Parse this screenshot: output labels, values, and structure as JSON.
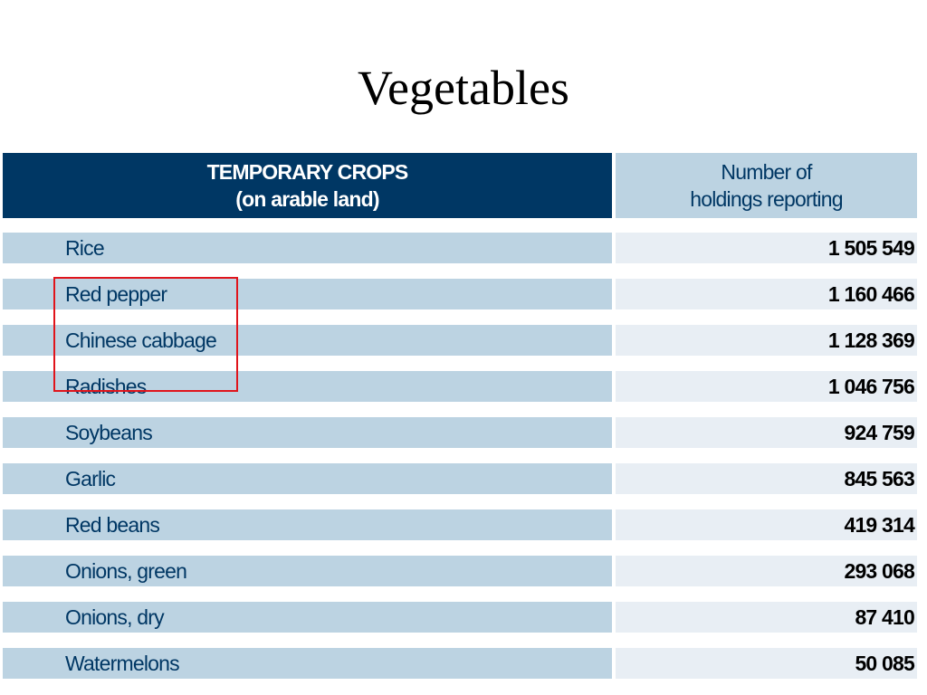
{
  "slide": {
    "title": "Vegetables"
  },
  "table": {
    "header": {
      "left_line1": "TEMPORARY CROPS",
      "left_line2": "(on arable land)",
      "right_line1": "Number of",
      "right_line2": "holdings reporting"
    },
    "rows": [
      {
        "crop": "Rice",
        "holdings": "1 505 549"
      },
      {
        "crop": "Red pepper",
        "holdings": "1 160 466"
      },
      {
        "crop": "Chinese cabbage",
        "holdings": "1 128 369"
      },
      {
        "crop": "Radishes",
        "holdings": "1 046 756"
      },
      {
        "crop": "Soybeans",
        "holdings": "924 759"
      },
      {
        "crop": "Garlic",
        "holdings": "845 563"
      },
      {
        "crop": "Red beans",
        "holdings": "419 314"
      },
      {
        "crop": "Onions, green",
        "holdings": "293 068"
      },
      {
        "crop": "Onions, dry",
        "holdings": "87 410"
      },
      {
        "crop": "Watermelons",
        "holdings": "50 085"
      }
    ]
  },
  "highlight": {
    "color": "#e0141b",
    "rows_highlighted": [
      "Red pepper",
      "Chinese cabbage",
      "Radishes"
    ]
  },
  "colors": {
    "header_dark": "#003764",
    "header_light": "#bcd3e2",
    "row_name_bg": "#bcd3e2",
    "row_value_bg": "#e8eef4",
    "name_text": "#003764"
  }
}
